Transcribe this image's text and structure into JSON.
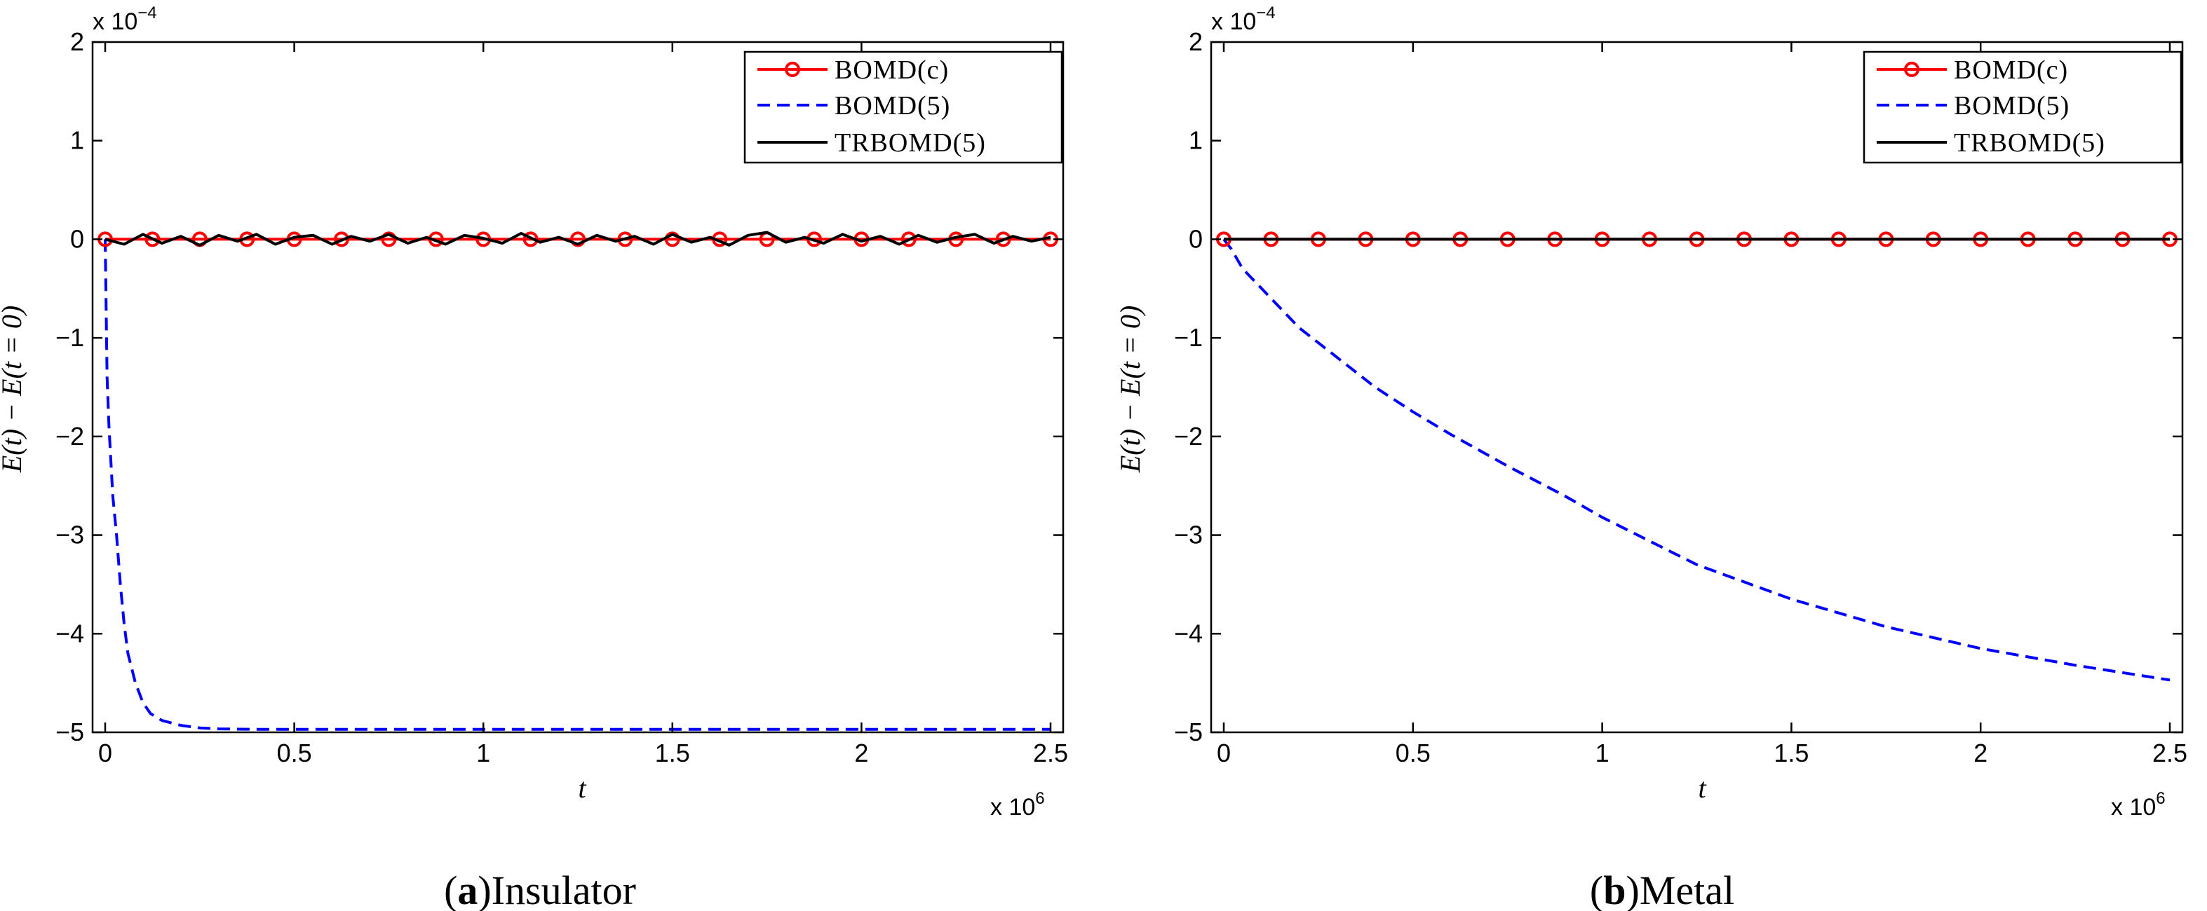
{
  "chart_data": [
    {
      "type": "line",
      "caption_letter": "a",
      "caption_text": "Insulator",
      "xlabel": "t",
      "ylabel": "E(t) − E(t = 0)",
      "x_multiplier": "x 10",
      "x_exponent": "6",
      "y_multiplier": "x 10",
      "y_exponent": "−4",
      "xlim": [
        0,
        2.5
      ],
      "ylim": [
        -5,
        2
      ],
      "xticks": [
        0,
        0.5,
        1,
        1.5,
        2,
        2.5
      ],
      "yticks": [
        -5,
        -4,
        -3,
        -2,
        -1,
        0,
        1,
        2
      ],
      "legend_position": "top-right",
      "legend": [
        "BOMD(c)",
        "BOMD(5)",
        "TRBOMD(5)"
      ],
      "series": [
        {
          "name": "BOMD(c)",
          "style": "solid-circle",
          "color": "#ff0000",
          "x": [
            0,
            0.125,
            0.25,
            0.375,
            0.5,
            0.625,
            0.75,
            0.875,
            1.0,
            1.125,
            1.25,
            1.375,
            1.5,
            1.625,
            1.75,
            1.875,
            2.0,
            2.125,
            2.25,
            2.375,
            2.5
          ],
          "y": [
            0,
            0,
            0,
            0,
            0,
            0,
            0,
            0,
            0,
            0,
            0,
            0,
            0,
            0,
            0,
            0,
            0,
            0,
            0,
            0,
            0
          ]
        },
        {
          "name": "BOMD(5)",
          "style": "dashed",
          "color": "#0000ff",
          "x": [
            0,
            0.005,
            0.01,
            0.02,
            0.03,
            0.04,
            0.05,
            0.06,
            0.08,
            0.1,
            0.12,
            0.15,
            0.2,
            0.25,
            0.3,
            0.4,
            0.6,
            1.0,
            1.5,
            2.0,
            2.5
          ],
          "y": [
            0,
            -1.4,
            -1.9,
            -2.6,
            -3.0,
            -3.5,
            -3.9,
            -4.2,
            -4.5,
            -4.7,
            -4.81,
            -4.88,
            -4.93,
            -4.955,
            -4.965,
            -4.97,
            -4.97,
            -4.97,
            -4.97,
            -4.97,
            -4.97
          ]
        },
        {
          "name": "TRBOMD(5)",
          "style": "solid",
          "color": "#000000",
          "x": [
            0,
            0.05,
            0.1,
            0.15,
            0.2,
            0.25,
            0.3,
            0.35,
            0.4,
            0.45,
            0.5,
            0.55,
            0.6,
            0.65,
            0.7,
            0.75,
            0.8,
            0.85,
            0.9,
            0.95,
            1.0,
            1.05,
            1.1,
            1.15,
            1.2,
            1.25,
            1.3,
            1.35,
            1.4,
            1.45,
            1.5,
            1.55,
            1.6,
            1.65,
            1.7,
            1.75,
            1.8,
            1.85,
            1.9,
            1.95,
            2.0,
            2.05,
            2.1,
            2.15,
            2.2,
            2.25,
            2.3,
            2.35,
            2.4,
            2.45,
            2.5
          ],
          "y": [
            0,
            -0.05,
            0.05,
            -0.04,
            0.03,
            -0.06,
            0.04,
            -0.02,
            0.05,
            -0.05,
            0.02,
            0.04,
            -0.05,
            0.03,
            -0.02,
            0.05,
            -0.04,
            0.02,
            -0.05,
            0.04,
            0.01,
            -0.04,
            0.06,
            -0.03,
            0.02,
            -0.05,
            0.04,
            -0.02,
            0.03,
            -0.05,
            0.05,
            -0.03,
            0.02,
            -0.06,
            0.04,
            0.07,
            -0.03,
            0.02,
            -0.04,
            0.05,
            -0.02,
            0.03,
            -0.05,
            0.04,
            -0.03,
            0.02,
            0.05,
            -0.04,
            0.03,
            -0.02,
            0.02
          ]
        }
      ]
    },
    {
      "type": "line",
      "caption_letter": "b",
      "caption_text": "Metal",
      "xlabel": "t",
      "ylabel": "E(t) − E(t = 0)",
      "x_multiplier": "x 10",
      "x_exponent": "6",
      "y_multiplier": "x 10",
      "y_exponent": "−4",
      "xlim": [
        0,
        2.5
      ],
      "ylim": [
        -5,
        2
      ],
      "xticks": [
        0,
        0.5,
        1,
        1.5,
        2,
        2.5
      ],
      "yticks": [
        -5,
        -4,
        -3,
        -2,
        -1,
        0,
        1,
        2
      ],
      "legend_position": "top-right",
      "legend": [
        "BOMD(c)",
        "BOMD(5)",
        "TRBOMD(5)"
      ],
      "series": [
        {
          "name": "BOMD(c)",
          "style": "solid-circle",
          "color": "#ff0000",
          "x": [
            0,
            0.125,
            0.25,
            0.375,
            0.5,
            0.625,
            0.75,
            0.875,
            1.0,
            1.125,
            1.25,
            1.375,
            1.5,
            1.625,
            1.75,
            1.875,
            2.0,
            2.125,
            2.25,
            2.375,
            2.5
          ],
          "y": [
            0,
            0,
            0,
            0,
            0,
            0,
            0,
            0,
            0,
            0,
            0,
            0,
            0,
            0,
            0,
            0,
            0,
            0,
            0,
            0,
            0
          ]
        },
        {
          "name": "BOMD(5)",
          "style": "dashed",
          "color": "#0000ff",
          "x": [
            0,
            0.02,
            0.05,
            0.1,
            0.15,
            0.2,
            0.25,
            0.3,
            0.4,
            0.5,
            0.6,
            0.75,
            0.9,
            1.0,
            1.25,
            1.5,
            1.75,
            2.0,
            2.25,
            2.5
          ],
          "y": [
            0,
            -0.1,
            -0.3,
            -0.5,
            -0.7,
            -0.9,
            -1.05,
            -1.2,
            -1.5,
            -1.75,
            -1.98,
            -2.3,
            -2.6,
            -2.82,
            -3.3,
            -3.65,
            -3.93,
            -4.15,
            -4.32,
            -4.47
          ]
        },
        {
          "name": "TRBOMD(5)",
          "style": "solid",
          "color": "#000000",
          "x": [
            0,
            0.5,
            1.0,
            1.5,
            2.0,
            2.5
          ],
          "y": [
            0,
            0,
            0,
            0,
            0,
            0
          ]
        }
      ]
    }
  ]
}
